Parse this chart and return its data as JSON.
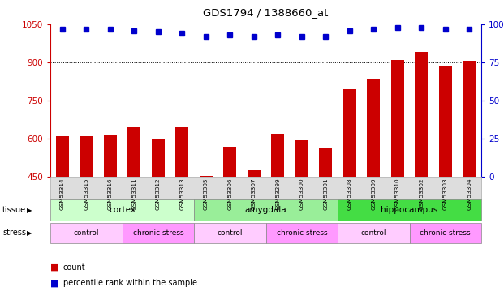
{
  "title": "GDS1794 / 1388660_at",
  "samples": [
    "GSM53314",
    "GSM53315",
    "GSM53316",
    "GSM53311",
    "GSM53312",
    "GSM53313",
    "GSM53305",
    "GSM53306",
    "GSM53307",
    "GSM53299",
    "GSM53300",
    "GSM53301",
    "GSM53308",
    "GSM53309",
    "GSM53310",
    "GSM53302",
    "GSM53303",
    "GSM53304"
  ],
  "counts": [
    610,
    607,
    615,
    645,
    600,
    645,
    453,
    567,
    473,
    617,
    592,
    560,
    795,
    835,
    910,
    940,
    885,
    907
  ],
  "percentiles": [
    97,
    97,
    97,
    96,
    95,
    94,
    92,
    93,
    92,
    93,
    92,
    92,
    96,
    97,
    98,
    98,
    97,
    97
  ],
  "bar_color": "#cc0000",
  "dot_color": "#0000cc",
  "ylim_left": [
    450,
    1050
  ],
  "ylim_right": [
    0,
    100
  ],
  "yticks_left": [
    450,
    600,
    750,
    900,
    1050
  ],
  "yticks_right": [
    0,
    25,
    50,
    75,
    100
  ],
  "grid_lines": [
    600,
    750,
    900
  ],
  "tissue_groups": [
    {
      "label": "cortex",
      "start": 0,
      "end": 6,
      "color": "#ccffcc"
    },
    {
      "label": "amygdala",
      "start": 6,
      "end": 12,
      "color": "#99ee99"
    },
    {
      "label": "hippocampus",
      "start": 12,
      "end": 18,
      "color": "#44dd44"
    }
  ],
  "stress_groups": [
    {
      "label": "control",
      "start": 0,
      "end": 3,
      "color": "#ffccff"
    },
    {
      "label": "chronic stress",
      "start": 3,
      "end": 6,
      "color": "#ff99ff"
    },
    {
      "label": "control",
      "start": 6,
      "end": 9,
      "color": "#ffccff"
    },
    {
      "label": "chronic stress",
      "start": 9,
      "end": 12,
      "color": "#ff99ff"
    },
    {
      "label": "control",
      "start": 12,
      "end": 15,
      "color": "#ffccff"
    },
    {
      "label": "chronic stress",
      "start": 15,
      "end": 18,
      "color": "#ff99ff"
    }
  ],
  "legend_count_label": "count",
  "legend_pct_label": "percentile rank within the sample",
  "tissue_label": "tissue",
  "stress_label": "stress",
  "bg_color": "#dddddd"
}
